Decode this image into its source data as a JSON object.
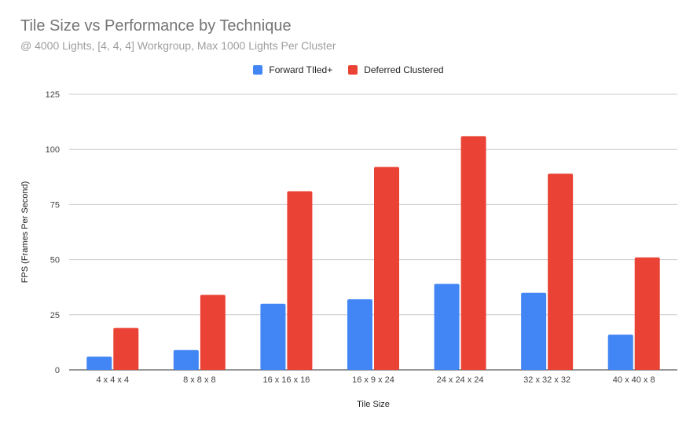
{
  "chart_data": {
    "type": "bar",
    "title": "Tile Size vs Performance by Technique",
    "subtitle": "@ 4000 Lights, [4, 4, 4] Workgroup, Max 1000 Lights Per Cluster",
    "xlabel": "Tile Size",
    "ylabel": "FPS (Frames Per Second)",
    "ylim": [
      0,
      125
    ],
    "yticks": [
      0,
      25,
      50,
      75,
      100,
      125
    ],
    "grid": true,
    "legend_position": "top",
    "categories": [
      "4 x 4 x 4",
      "8 x 8 x 8",
      "16 x 16 x 16",
      "16 x 9 x 24",
      "24 x 24 x 24",
      "32 x 32 x 32",
      "40 x 40 x 8"
    ],
    "series": [
      {
        "name": "Forward TIled+",
        "color": "#4285f4",
        "values": [
          6,
          9,
          30,
          32,
          39,
          35,
          16
        ]
      },
      {
        "name": "Deferred Clustered",
        "color": "#ea4335",
        "values": [
          19,
          34,
          81,
          92,
          106,
          89,
          51
        ]
      }
    ]
  }
}
